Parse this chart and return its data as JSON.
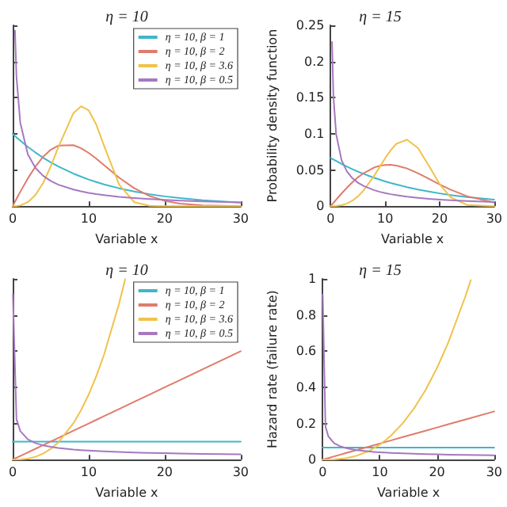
{
  "chart_data": [
    {
      "type": "line",
      "title": "η = 10",
      "xlabel": "Variable x",
      "xlim": [
        0,
        30
      ],
      "xticks": [
        0,
        10,
        20,
        30
      ],
      "ylim": [
        0,
        0.25
      ],
      "yticks": [
        0,
        0.05,
        0.1,
        0.15,
        0.2,
        0.25
      ],
      "tick_labels": "x",
      "grid": false,
      "legend": "top right",
      "x": [
        0,
        0.5,
        1,
        2,
        3,
        4,
        5,
        6,
        8,
        9,
        10,
        11,
        12,
        14,
        16,
        18,
        20,
        22,
        25,
        30
      ],
      "series": [
        {
          "name": "η = 10, β = 1",
          "color": "#3fb6c9",
          "values": [
            0.1,
            0.0951,
            0.0905,
            0.0819,
            0.0741,
            0.067,
            0.0607,
            0.0549,
            0.0449,
            0.0407,
            0.0368,
            0.0333,
            0.0301,
            0.0247,
            0.0202,
            0.0165,
            0.0135,
            0.0111,
            0.0082,
            0.005
          ]
        },
        {
          "name": "η = 10, β = 2",
          "color": "#e07b6a",
          "values": [
            0,
            0.01,
            0.0198,
            0.0384,
            0.0548,
            0.0682,
            0.0779,
            0.0837,
            0.0843,
            0.0801,
            0.0736,
            0.0656,
            0.0569,
            0.0394,
            0.0247,
            0.014,
            0.0073,
            0.0035,
            0.001,
            0
          ]
        },
        {
          "name": "η = 10, β = 3.6",
          "color": "#f0c24a",
          "values": [
            0,
            0.0001,
            0.0009,
            0.0055,
            0.0155,
            0.032,
            0.0547,
            0.0814,
            0.1288,
            0.1381,
            0.1324,
            0.1127,
            0.0841,
            0.03,
            0.0054,
            0.0004,
            0,
            0,
            0,
            0
          ]
        },
        {
          "name": "η = 10, β = 0.5",
          "color": "#a678c0",
          "x": [
            0.3,
            0.5,
            1,
            2,
            3,
            4,
            5,
            6,
            8,
            9,
            10,
            11,
            12,
            14,
            16,
            18,
            20,
            22,
            25,
            30
          ],
          "values": [
            0.2428,
            0.1788,
            0.1153,
            0.0715,
            0.0528,
            0.042,
            0.0349,
            0.0297,
            0.0229,
            0.0204,
            0.0184,
            0.0167,
            0.0153,
            0.0129,
            0.0112,
            0.0097,
            0.0086,
            0.0077,
            0.0065,
            0.0051
          ]
        }
      ]
    },
    {
      "type": "line",
      "title": "η = 15",
      "xlabel": "Variable x",
      "ylabel": "Probability density function",
      "xlim": [
        0,
        30
      ],
      "xticks": [
        0,
        10,
        20,
        30
      ],
      "ylim": [
        0,
        0.25
      ],
      "yticks": [
        0,
        0.05,
        0.1,
        0.15,
        0.2,
        0.25
      ],
      "grid": false,
      "x": [
        0,
        0.5,
        1,
        2,
        3,
        4,
        5,
        6,
        8,
        9,
        10,
        11,
        12,
        14,
        16,
        18,
        20,
        22,
        25,
        30
      ],
      "series": [
        {
          "color": "#3fb6c9",
          "values": [
            0.0667,
            0.0645,
            0.0624,
            0.0583,
            0.0546,
            0.0511,
            0.0478,
            0.0447,
            0.0391,
            0.0366,
            0.0342,
            0.032,
            0.03,
            0.0262,
            0.0229,
            0.0201,
            0.0176,
            0.0154,
            0.0126,
            0.009
          ]
        },
        {
          "color": "#e07b6a",
          "values": [
            0,
            0.0044,
            0.0089,
            0.0175,
            0.0256,
            0.0331,
            0.0398,
            0.0454,
            0.0535,
            0.0558,
            0.057,
            0.0571,
            0.0562,
            0.0521,
            0.0456,
            0.0379,
            0.03,
            0.0228,
            0.0138,
            0.0049
          ]
        },
        {
          "color": "#f0c24a",
          "values": [
            0,
            0,
            0.0002,
            0.0013,
            0.0036,
            0.0077,
            0.0135,
            0.0213,
            0.0422,
            0.0543,
            0.0663,
            0.0772,
            0.0859,
            0.092,
            0.0804,
            0.0561,
            0.0303,
            0.0123,
            0.0017,
            0
          ]
        },
        {
          "color": "#a678c0",
          "x": [
            0.25,
            0.5,
            1,
            2,
            3,
            4,
            5,
            6,
            8,
            9,
            10,
            11,
            12,
            14,
            16,
            18,
            20,
            22,
            25,
            30
          ],
          "values": [
            0.227,
            0.1521,
            0.0997,
            0.0634,
            0.0477,
            0.0385,
            0.0324,
            0.028,
            0.022,
            0.0198,
            0.018,
            0.0165,
            0.0152,
            0.0131,
            0.0115,
            0.0102,
            0.0091,
            0.0082,
            0.0071,
            0.0057
          ]
        }
      ]
    },
    {
      "type": "line",
      "title": "η = 10",
      "xlabel": "Variable x",
      "xlim": [
        0,
        30
      ],
      "xticks": [
        0,
        10,
        20,
        30
      ],
      "ylim": [
        0,
        1
      ],
      "yticks": [
        0,
        0.2,
        0.4,
        0.6,
        0.8,
        1
      ],
      "tick_labels": "x",
      "grid": false,
      "legend": "top right",
      "x": [
        0,
        0.5,
        1,
        2,
        3,
        4,
        5,
        6,
        8,
        9,
        10,
        11,
        12,
        14,
        16,
        18,
        20,
        22,
        25,
        30
      ],
      "series": [
        {
          "name": "η = 10, β = 1",
          "color": "#3fb6c9",
          "values": [
            0.1,
            0.1,
            0.1,
            0.1,
            0.1,
            0.1,
            0.1,
            0.1,
            0.1,
            0.1,
            0.1,
            0.1,
            0.1,
            0.1,
            0.1,
            0.1,
            0.1,
            0.1,
            0.1,
            0.1
          ]
        },
        {
          "name": "η = 10, β = 2",
          "color": "#e07b6a",
          "values": [
            0,
            0.01,
            0.02,
            0.04,
            0.06,
            0.08,
            0.1,
            0.12,
            0.16,
            0.18,
            0.2,
            0.22,
            0.24,
            0.28,
            0.32,
            0.36,
            0.4,
            0.44,
            0.5,
            0.6
          ]
        },
        {
          "name": "η = 10, β = 3.6",
          "color": "#f0c24a",
          "x": [
            0,
            0.5,
            1,
            2,
            3,
            4,
            5,
            6,
            8,
            9,
            10,
            11,
            12,
            14,
            14.8
          ],
          "values": [
            0,
            0.0001,
            0.0009,
            0.0055,
            0.0157,
            0.0332,
            0.0594,
            0.0954,
            0.2015,
            0.2737,
            0.36,
            0.4612,
            0.5783,
            0.8634,
            0.998
          ]
        },
        {
          "name": "η = 10, β = 0.5",
          "color": "#a678c0",
          "x": [
            0.03,
            0.5,
            1,
            2,
            3,
            4,
            5,
            6,
            8,
            9,
            10,
            11,
            12,
            14,
            16,
            18,
            20,
            22,
            25,
            30
          ],
          "values": [
            0.913,
            0.2236,
            0.1581,
            0.1118,
            0.0913,
            0.0791,
            0.0707,
            0.0645,
            0.0559,
            0.0527,
            0.05,
            0.0477,
            0.0456,
            0.0423,
            0.0395,
            0.0373,
            0.0354,
            0.0337,
            0.0316,
            0.0289
          ]
        }
      ]
    },
    {
      "type": "line",
      "title": "η = 15",
      "xlabel": "Variable x",
      "ylabel": "Hazard rate (failure rate)",
      "xlim": [
        0,
        30
      ],
      "xticks": [
        0,
        10,
        20,
        30
      ],
      "ylim": [
        0,
        1
      ],
      "yticks": [
        0,
        0.2,
        0.4,
        0.6,
        0.8,
        1
      ],
      "grid": false,
      "x": [
        0,
        0.5,
        1,
        2,
        3,
        4,
        5,
        6,
        8,
        9,
        10,
        11,
        12,
        14,
        16,
        18,
        20,
        22,
        25,
        30
      ],
      "series": [
        {
          "color": "#3fb6c9",
          "values": [
            0.0667,
            0.0667,
            0.0667,
            0.0667,
            0.0667,
            0.0667,
            0.0667,
            0.0667,
            0.0667,
            0.0667,
            0.0667,
            0.0667,
            0.0667,
            0.0667,
            0.0667,
            0.0667,
            0.0667,
            0.0667,
            0.0667,
            0.0667
          ]
        },
        {
          "color": "#e07b6a",
          "values": [
            0,
            0.0044,
            0.0089,
            0.0178,
            0.0267,
            0.0356,
            0.0444,
            0.0533,
            0.0711,
            0.08,
            0.0889,
            0.0978,
            0.1067,
            0.1244,
            0.1422,
            0.16,
            0.1778,
            0.1956,
            0.2222,
            0.2667
          ]
        },
        {
          "color": "#f0c24a",
          "x": [
            0,
            0.5,
            1,
            2,
            3,
            4,
            5,
            6,
            8,
            9,
            10,
            11,
            12,
            14,
            16,
            18,
            20,
            22,
            25,
            25.9
          ],
          "values": [
            0,
            0,
            0.0002,
            0.0013,
            0.0037,
            0.0077,
            0.0138,
            0.0222,
            0.0468,
            0.0636,
            0.0836,
            0.1071,
            0.1344,
            0.2006,
            0.2838,
            0.3856,
            0.507,
            0.6497,
            0.9058,
            0.9929
          ]
        },
        {
          "color": "#a678c0",
          "x": [
            0.02,
            0.5,
            1,
            2,
            3,
            4,
            5,
            6,
            8,
            9,
            10,
            11,
            12,
            14,
            16,
            18,
            20,
            22,
            25,
            30
          ],
          "values": [
            0.913,
            0.1826,
            0.1291,
            0.0913,
            0.0745,
            0.0645,
            0.0577,
            0.0527,
            0.0456,
            0.043,
            0.0408,
            0.0389,
            0.0373,
            0.0345,
            0.0323,
            0.0304,
            0.0289,
            0.0275,
            0.0258,
            0.0236
          ]
        }
      ]
    }
  ]
}
